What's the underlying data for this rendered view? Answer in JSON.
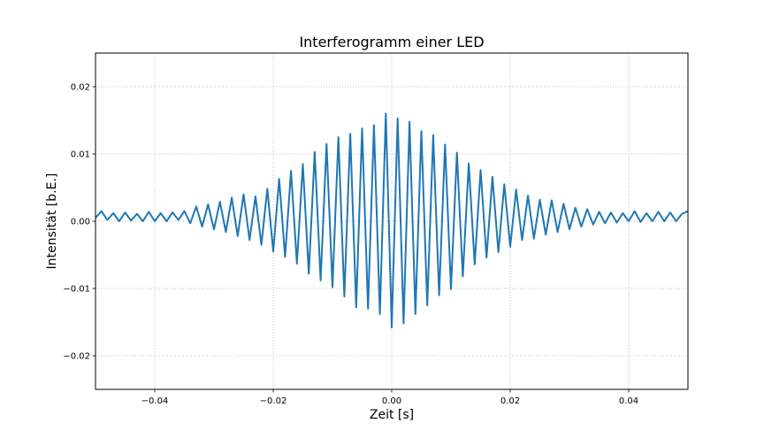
{
  "chart_data": {
    "type": "line",
    "title": "Interferogramm einer LED",
    "xlabel": "Zeit [s]",
    "ylabel": "Intensität [b.E.]",
    "xlim": [
      -0.05,
      0.05
    ],
    "ylim": [
      -0.025,
      0.025
    ],
    "grid": true,
    "grid_style": "dotted",
    "line_color": "#1f77b4",
    "xticks": [
      -0.04,
      -0.02,
      0.0,
      0.02,
      0.04
    ],
    "xtick_labels": [
      "−0.04",
      "−0.02",
      "0.00",
      "0.02",
      "0.04"
    ],
    "yticks": [
      -0.02,
      -0.01,
      0.0,
      0.01,
      0.02
    ],
    "ytick_labels": [
      "−0.02",
      "−0.01",
      "0.00",
      "0.01",
      "0.02"
    ],
    "series": [
      {
        "x": [
          -0.05,
          -0.049,
          -0.048,
          -0.047,
          -0.046,
          -0.045,
          -0.044,
          -0.043,
          -0.042,
          -0.041,
          -0.04,
          -0.039,
          -0.038,
          -0.037,
          -0.036,
          -0.035,
          -0.034,
          -0.033,
          -0.032,
          -0.031,
          -0.03,
          -0.029,
          -0.028,
          -0.027,
          -0.026,
          -0.025,
          -0.024,
          -0.023,
          -0.022,
          -0.021,
          -0.02,
          -0.019,
          -0.018,
          -0.017,
          -0.016,
          -0.015,
          -0.014,
          -0.013,
          -0.012,
          -0.011,
          -0.01,
          -0.009,
          -0.008,
          -0.007,
          -0.006,
          -0.005,
          -0.004,
          -0.003,
          -0.002,
          -0.001,
          0.0,
          0.001,
          0.002,
          0.003,
          0.004,
          0.005,
          0.006,
          0.007,
          0.008,
          0.009,
          0.01,
          0.011,
          0.012,
          0.013,
          0.014,
          0.015,
          0.016,
          0.017,
          0.018,
          0.019,
          0.02,
          0.021,
          0.022,
          0.023,
          0.024,
          0.025,
          0.026,
          0.027,
          0.028,
          0.029,
          0.03,
          0.031,
          0.032,
          0.033,
          0.034,
          0.035,
          0.036,
          0.037,
          0.038,
          0.039,
          0.04,
          0.041,
          0.042,
          0.043,
          0.044,
          0.045,
          0.046,
          0.047,
          0.048,
          0.049,
          0.05
        ],
        "y": [
          0.0005,
          0.0015,
          0.0002,
          0.0012,
          0.0,
          0.0013,
          0.0001,
          0.0011,
          0.0,
          0.0014,
          0.0,
          0.0012,
          0.0,
          0.0013,
          0.0002,
          0.0015,
          -0.0003,
          0.0022,
          -0.0008,
          0.0025,
          -0.0012,
          0.0029,
          -0.0016,
          0.0035,
          -0.0022,
          0.004,
          -0.0028,
          0.0037,
          -0.0035,
          0.0048,
          -0.0045,
          0.0063,
          -0.0053,
          0.0075,
          -0.0063,
          0.0085,
          -0.0078,
          0.0103,
          -0.0088,
          0.0115,
          -0.0098,
          0.0125,
          -0.0112,
          0.013,
          -0.0128,
          0.0138,
          -0.013,
          0.0143,
          -0.0138,
          0.016,
          -0.0158,
          0.0153,
          -0.0152,
          0.0148,
          -0.0138,
          0.0134,
          -0.0125,
          0.0128,
          -0.011,
          0.0114,
          -0.0101,
          0.0102,
          -0.0082,
          0.0086,
          -0.0064,
          0.0076,
          -0.0054,
          0.0066,
          -0.0046,
          0.0055,
          -0.0038,
          0.0047,
          -0.0028,
          0.0038,
          -0.0026,
          0.0032,
          -0.002,
          0.0031,
          -0.0016,
          0.0026,
          -0.0012,
          0.002,
          -0.0008,
          0.0018,
          -0.0005,
          0.0014,
          -0.0003,
          0.0013,
          -0.0002,
          0.0012,
          0.0,
          0.0015,
          -0.0001,
          0.0012,
          0.0,
          0.0014,
          0.0,
          0.0013,
          0.0,
          0.0011,
          0.0015
        ]
      }
    ]
  }
}
